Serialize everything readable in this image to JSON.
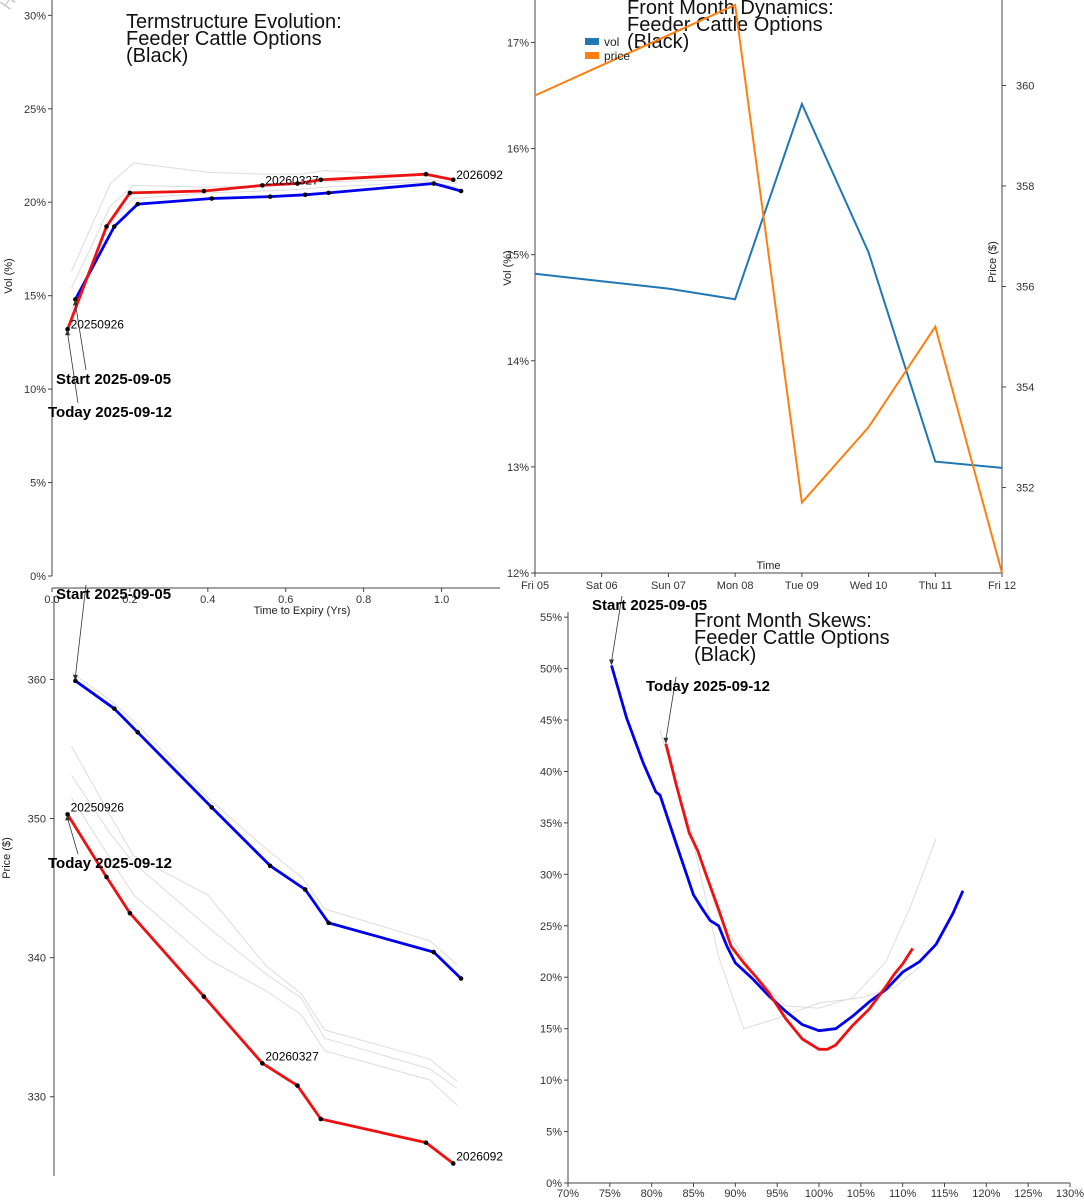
{
  "watermark": "Hist",
  "colors": {
    "start": "#0000ee",
    "today": "#ee1111",
    "history": "#dddddd",
    "vol": "#1f77b4",
    "price": "#ff7f0e",
    "axis": "#444444",
    "marker": "#000000"
  },
  "chart_data": [
    {
      "id": "termstructure_vol",
      "type": "line",
      "title": [
        "Termstructure Evolution:",
        "Feeder Cattle Options",
        "(Black)"
      ],
      "xlabel": "Time to Expiry (Yrs)",
      "ylabel": "Vol (%)",
      "xlim": [
        0,
        1.15
      ],
      "ylim": [
        0,
        30.5
      ],
      "xticks": [
        0,
        0.2,
        0.4,
        0.6,
        0.8,
        1.0
      ],
      "xtick_labels": [
        "0.0",
        "0.2",
        "0.4",
        "0.6",
        "0.8",
        "1.0"
      ],
      "yticks": [
        0,
        5,
        10,
        15,
        20,
        25,
        30
      ],
      "ytick_labels": [
        "0%",
        "5%",
        "10%",
        "15%",
        "20%",
        "25%",
        "30%"
      ],
      "series": [
        {
          "name": "start",
          "role": "start",
          "x": [
            0.06,
            0.16,
            0.22,
            0.41,
            0.56,
            0.65,
            0.71,
            0.98,
            1.05
          ],
          "y": [
            14.8,
            18.7,
            19.9,
            20.2,
            20.3,
            20.4,
            20.5,
            21.0,
            20.6
          ]
        },
        {
          "name": "today",
          "role": "today",
          "x": [
            0.04,
            0.14,
            0.2,
            0.39,
            0.54,
            0.63,
            0.69,
            0.96,
            1.03
          ],
          "y": [
            13.2,
            18.7,
            20.5,
            20.6,
            20.9,
            21.0,
            21.2,
            21.5,
            21.2
          ]
        },
        {
          "name": "hist1",
          "role": "history",
          "x": [
            0.05,
            0.15,
            0.21,
            0.4,
            0.55,
            0.64,
            0.7,
            0.97,
            1.04
          ],
          "y": [
            16.3,
            21.0,
            22.1,
            21.6,
            21.5,
            21.5,
            21.7,
            21.4,
            21.1
          ]
        },
        {
          "name": "hist2",
          "role": "history",
          "x": [
            0.05,
            0.15,
            0.21,
            0.4,
            0.55,
            0.64,
            0.7,
            0.97,
            1.04
          ],
          "y": [
            15.4,
            19.8,
            20.9,
            20.8,
            20.9,
            21.0,
            21.1,
            21.2,
            21.0
          ]
        },
        {
          "name": "hist3",
          "role": "history",
          "x": [
            0.05,
            0.15,
            0.21,
            0.4,
            0.55,
            0.64,
            0.7,
            0.97,
            1.04
          ],
          "y": [
            14.2,
            19.0,
            20.2,
            20.5,
            20.6,
            20.7,
            20.8,
            21.1,
            20.8
          ]
        }
      ],
      "point_labels": [
        {
          "text": "20250926",
          "x": 0.04,
          "y": 13.2
        },
        {
          "text": "20260327",
          "x": 0.54,
          "y": 20.9
        },
        {
          "text": "2026092",
          "x": 1.03,
          "y": 21.2
        }
      ],
      "annotations": [
        {
          "text": "Start 2025-09-05",
          "x": 0.06,
          "y": 14.8
        },
        {
          "text": "Today 2025-09-12",
          "x": 0.04,
          "y": 13.2
        }
      ]
    },
    {
      "id": "front_month_dynamics",
      "type": "line",
      "title": [
        "Front Month Dynamics:",
        "Feeder Cattle Options",
        "(Black)"
      ],
      "xlabel": "Time",
      "ylabel": "Vol (%)",
      "y2label": "Price ($)",
      "categories": [
        "Fri 05",
        "Sat 06",
        "Sun 07",
        "Mon 08",
        "Tue 09",
        "Wed 10",
        "Thu 11",
        "Fri 12"
      ],
      "ylim": [
        12,
        17.4
      ],
      "yticks": [
        12,
        13,
        14,
        15,
        16,
        17
      ],
      "ytick_labels": [
        "12%",
        "13%",
        "14%",
        "15%",
        "16%",
        "17%"
      ],
      "y2lim": [
        350.3,
        361.7
      ],
      "y2ticks": [
        352,
        354,
        356,
        358,
        360
      ],
      "y2tick_labels": [
        "352",
        "354",
        "356",
        "358",
        "360"
      ],
      "legend": [
        "vol",
        "price"
      ],
      "series": [
        {
          "name": "vol",
          "axis": "left",
          "values": [
            14.82,
            14.75,
            14.68,
            14.58,
            16.42,
            15.02,
            13.05,
            12.99
          ]
        },
        {
          "name": "price",
          "axis": "right",
          "values": [
            359.8,
            360.4,
            361.0,
            361.6,
            351.7,
            353.2,
            355.2,
            350.3
          ]
        }
      ]
    },
    {
      "id": "termstructure_price",
      "type": "line",
      "ylabel": "Price ($)",
      "xlim": [
        0,
        1.15
      ],
      "ylim": [
        324.3,
        366
      ],
      "yticks": [
        330,
        340,
        350,
        360
      ],
      "ytick_labels": [
        "330",
        "340",
        "350",
        "360"
      ],
      "series": [
        {
          "name": "start",
          "role": "start",
          "x": [
            0.06,
            0.16,
            0.22,
            0.41,
            0.56,
            0.65,
            0.71,
            0.98,
            1.05
          ],
          "y": [
            359.9,
            357.9,
            356.2,
            350.8,
            346.6,
            344.9,
            342.5,
            340.4,
            338.5
          ]
        },
        {
          "name": "today",
          "role": "today",
          "x": [
            0.04,
            0.14,
            0.2,
            0.39,
            0.54,
            0.63,
            0.69,
            0.96,
            1.03
          ],
          "y": [
            350.3,
            345.8,
            343.2,
            337.2,
            332.4,
            330.8,
            328.4,
            326.7,
            325.2
          ]
        },
        {
          "name": "hist1",
          "role": "history",
          "x": [
            0.05,
            0.15,
            0.21,
            0.4,
            0.55,
            0.64,
            0.7,
            0.97,
            1.04
          ],
          "y": [
            360.5,
            358.5,
            357.0,
            351.5,
            347.8,
            345.8,
            343.5,
            341.2,
            339.5
          ]
        },
        {
          "name": "hist2",
          "role": "history",
          "x": [
            0.05,
            0.15,
            0.21,
            0.4,
            0.55,
            0.64,
            0.7,
            0.97,
            1.04
          ],
          "y": [
            355.2,
            350.2,
            347.3,
            344.5,
            339.4,
            337.4,
            334.8,
            332.7,
            331.1
          ]
        },
        {
          "name": "hist3",
          "role": "history",
          "x": [
            0.05,
            0.15,
            0.21,
            0.4,
            0.55,
            0.64,
            0.7,
            0.97,
            1.04
          ],
          "y": [
            353.1,
            348.9,
            346.8,
            342.2,
            338.8,
            337.1,
            334.2,
            332.0,
            330.6
          ]
        },
        {
          "name": "hist4",
          "role": "history",
          "x": [
            0.05,
            0.15,
            0.21,
            0.4,
            0.55,
            0.64,
            0.7,
            0.97,
            1.04
          ],
          "y": [
            351.5,
            347.1,
            344.5,
            339.9,
            337.6,
            335.9,
            333.3,
            331.2,
            329.4
          ]
        }
      ],
      "point_labels": [
        {
          "text": "20250926",
          "x": 0.04,
          "y": 350.3
        },
        {
          "text": "20260327",
          "x": 0.54,
          "y": 332.4
        },
        {
          "text": "2026092",
          "x": 1.03,
          "y": 325.2
        }
      ],
      "annotations": [
        {
          "text": "Start 2025-09-05",
          "x": 0.06,
          "y": 359.9
        },
        {
          "text": "Today 2025-09-12",
          "x": 0.04,
          "y": 350.3
        }
      ]
    },
    {
      "id": "front_month_skews",
      "type": "line",
      "title": [
        "Front Month Skews:",
        "Feeder Cattle Options",
        "(Black)"
      ],
      "xlim": [
        70,
        130
      ],
      "xticks": [
        70,
        75,
        80,
        85,
        90,
        95,
        100,
        105,
        110,
        115,
        120,
        125,
        130
      ],
      "xtick_labels": [
        "70%",
        "75%",
        "80%",
        "85%",
        "90%",
        "95%",
        "100%",
        "105%",
        "110%",
        "115%",
        "120%",
        "125%",
        "130%"
      ],
      "ylim": [
        0,
        55.5
      ],
      "yticks": [
        0,
        5,
        10,
        15,
        20,
        25,
        30,
        35,
        40,
        45,
        50,
        55
      ],
      "ytick_labels": [
        "0%",
        "5%",
        "10%",
        "15%",
        "20%",
        "25%",
        "30%",
        "35%",
        "40%",
        "45%",
        "50%",
        "55%"
      ],
      "series": [
        {
          "name": "start",
          "role": "start",
          "x": [
            75.2,
            77,
            79,
            80.5,
            81,
            83,
            85,
            86,
            87,
            88,
            89,
            90,
            92,
            94,
            96,
            98,
            100,
            102,
            104,
            106,
            108,
            110,
            112,
            114,
            116,
            117.2
          ],
          "y": [
            50.3,
            45.2,
            40.8,
            38.0,
            37.7,
            32.8,
            28.0,
            26.7,
            25.5,
            25.0,
            23.0,
            21.4,
            19.9,
            18.2,
            16.7,
            15.4,
            14.8,
            15.0,
            16.2,
            17.6,
            18.8,
            20.5,
            21.5,
            23.2,
            26.2,
            28.4
          ]
        },
        {
          "name": "today",
          "role": "today",
          "x": [
            81.7,
            83,
            84.5,
            85.5,
            86.5,
            88,
            89.5,
            91,
            92.5,
            94,
            96,
            98,
            100,
            101,
            102,
            104,
            106,
            107,
            108,
            109,
            110,
            111.2
          ],
          "y": [
            42.7,
            38.5,
            34.0,
            32.3,
            30.0,
            26.6,
            23.0,
            21.4,
            20.0,
            18.5,
            16.0,
            14.0,
            13.0,
            13.0,
            13.4,
            15.3,
            16.9,
            18.0,
            19.1,
            20.3,
            21.3,
            22.8
          ]
        },
        {
          "name": "hist1",
          "role": "history",
          "x": [
            81,
            84,
            88,
            92,
            96,
            100,
            104,
            108,
            111,
            114
          ],
          "y": [
            44.0,
            36.0,
            26.0,
            20.5,
            17.2,
            17.0,
            18.0,
            21.5,
            27.0,
            33.5
          ]
        },
        {
          "name": "hist2",
          "role": "history",
          "x": [
            85,
            88,
            91,
            95,
            100,
            105,
            109,
            112
          ],
          "y": [
            33.0,
            22.0,
            15.0,
            16.0,
            17.5,
            18.0,
            19.0,
            21.0
          ]
        }
      ],
      "annotations": [
        {
          "text": "Start 2025-09-05",
          "x": 75.2,
          "y": 50.3
        },
        {
          "text": "Today 2025-09-12",
          "x": 81.7,
          "y": 42.7
        }
      ]
    }
  ]
}
